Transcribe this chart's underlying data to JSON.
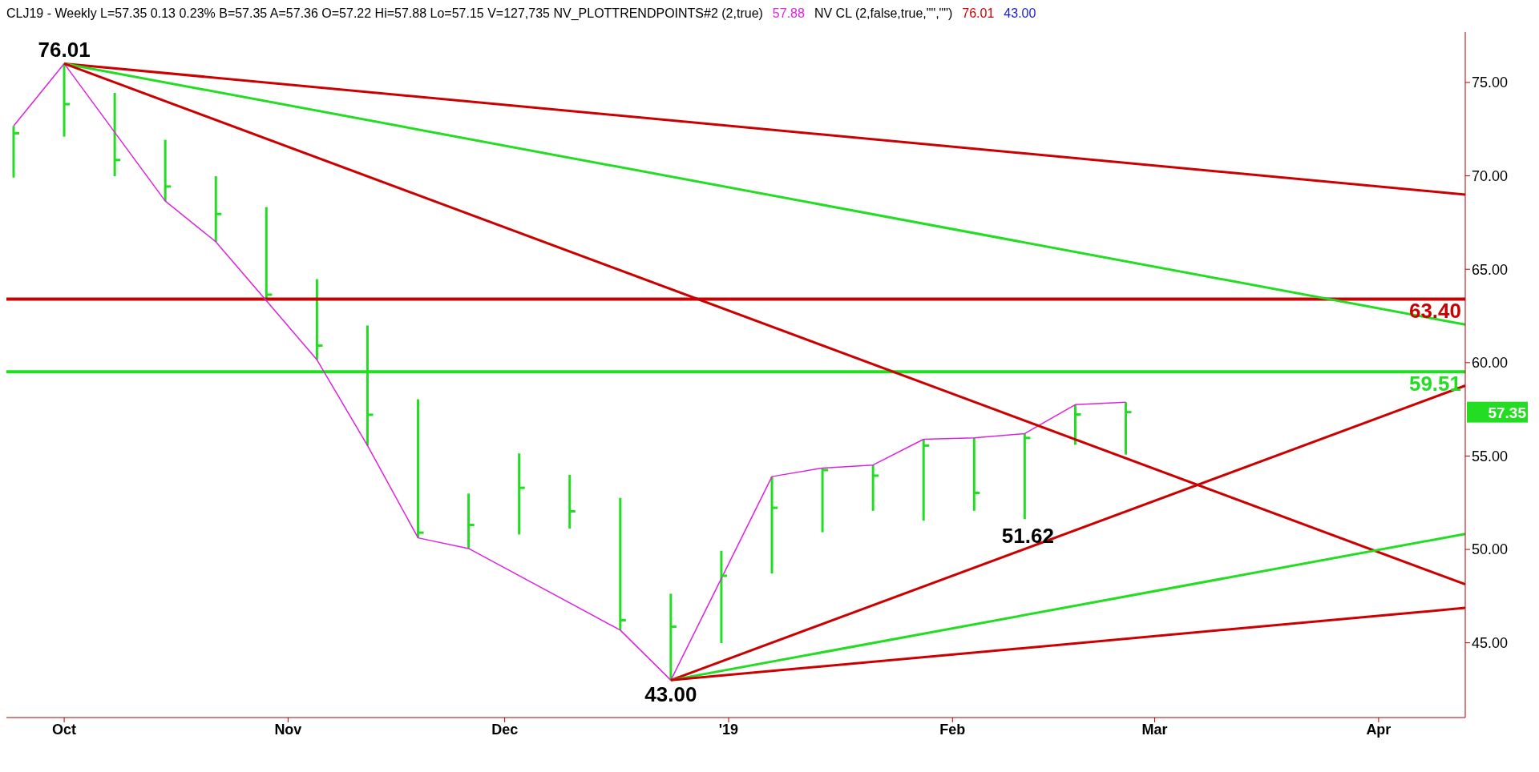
{
  "chart_data": {
    "type": "bar",
    "title": "CLJ19 - Weekly  L=57.35  0.13  0.23%  B=57.35  A=57.36  O=57.22  Hi=57.88  Lo=57.15  V=127,735  NV_PLOTTRENDPOINTS#2 (2,true)",
    "color": "#22dd22",
    "x": [
      "2018-09-24",
      "2018-10-01",
      "2018-10-08",
      "2018-10-15",
      "2018-10-22",
      "2018-10-29",
      "2018-11-05",
      "2018-11-12",
      "2018-11-19",
      "2018-11-26",
      "2018-12-03",
      "2018-12-10",
      "2018-12-17",
      "2018-12-24",
      "2018-12-31",
      "2019-01-07",
      "2019-01-14",
      "2019-01-21",
      "2019-01-28",
      "2019-02-04",
      "2019-02-11",
      "2019-02-18",
      "2019-02-25"
    ],
    "base": [
      69.91,
      72.1,
      69.98,
      68.65,
      66.47,
      63.32,
      60.15,
      55.56,
      50.62,
      50.05,
      50.8,
      51.12,
      45.68,
      43.0,
      44.99,
      48.71,
      50.92,
      52.07,
      51.54,
      52.07,
      51.62,
      55.6,
      55.08
    ],
    "values": [
      2.76,
      3.91,
      4.46,
      3.28,
      3.51,
      5.01,
      4.32,
      6.43,
      7.42,
      2.94,
      4.34,
      2.87,
      7.08,
      4.63,
      4.94,
      5.19,
      3.44,
      2.45,
      4.36,
      3.9,
      4.58,
      2.15,
      2.8
    ],
    "series": [
      {
        "type": "line",
        "color": "#dd22dd",
        "x": [
          "2018-09-24",
          "2018-10-01",
          "2018-10-15",
          "2018-10-22",
          "2018-10-29",
          "2018-11-05",
          "2018-11-12",
          "2018-11-19",
          "2018-11-26",
          "2018-12-17",
          "2018-12-24",
          "2019-01-07",
          "2019-01-14",
          "2019-01-21",
          "2019-01-28",
          "2019-02-04",
          "2019-02-11",
          "2019-02-18",
          "2019-02-25"
        ],
        "values": [
          72.67,
          76.01,
          68.65,
          66.47,
          63.32,
          60.15,
          55.56,
          50.62,
          50.05,
          45.68,
          43.0,
          53.9,
          54.36,
          54.52,
          55.9,
          55.97,
          56.2,
          57.75,
          57.88
        ]
      },
      {
        "type": "line",
        "color": "#cc0000",
        "x": [
          "2018-10-01",
          "2019-04-13"
        ],
        "values": [
          76.01,
          69.0
        ]
      },
      {
        "type": "line",
        "color": "#22dd22",
        "x": [
          "2018-10-01",
          "2019-04-13"
        ],
        "values": [
          76.01,
          62.04
        ]
      },
      {
        "type": "line",
        "color": "#cc0000",
        "x": [
          "2018-10-01",
          "2019-04-13"
        ],
        "values": [
          76.01,
          48.13
        ]
      },
      {
        "type": "line",
        "color": "#cc0000",
        "x": [
          "2018-12-24",
          "2019-04-13"
        ],
        "values": [
          43.0,
          58.77
        ]
      },
      {
        "type": "line",
        "color": "#22dd22",
        "x": [
          "2018-12-24",
          "2019-04-13"
        ],
        "values": [
          43.0,
          50.83
        ]
      },
      {
        "type": "line",
        "color": "#cc0000",
        "x": [
          "2018-12-24",
          "2019-04-13"
        ],
        "values": [
          43.0,
          46.87
        ]
      },
      {
        "type": "scatter",
        "color": "#22dd22",
        "x": [
          "2018-09-24",
          "2018-10-01",
          "2018-10-08",
          "2018-10-15",
          "2018-10-22",
          "2018-10-29",
          "2018-11-05",
          "2018-11-12",
          "2018-11-19",
          "2018-11-26",
          "2018-12-03",
          "2018-12-10",
          "2018-12-17",
          "2018-12-24",
          "2018-12-31",
          "2019-01-07",
          "2019-01-14",
          "2019-01-21",
          "2019-01-28",
          "2019-02-04",
          "2019-02-11",
          "2019-02-18",
          "2019-02-25"
        ],
        "values": [
          72.28,
          73.84,
          70.85,
          69.43,
          67.96,
          63.64,
          60.91,
          57.21,
          50.9,
          51.31,
          53.3,
          52.04,
          46.21,
          45.86,
          48.59,
          52.23,
          54.25,
          53.95,
          55.56,
          53.03,
          55.97,
          57.23,
          57.35
        ]
      }
    ],
    "ref_lines": [
      {
        "axis": "y",
        "value": 63.4,
        "label": "63.40",
        "color": "#cc0000"
      },
      {
        "axis": "y",
        "value": 59.51,
        "label": "59.51",
        "color": "#22dd22"
      }
    ],
    "annotations": [
      "57.88",
      "NV CL (2,false,true,\"\",\"\")",
      "76.01",
      "43.00",
      {
        "text": "76.01",
        "x": "2018-10-01",
        "y": 76.01
      },
      {
        "text": "43.00",
        "x": "2018-12-24",
        "y": 43.0
      },
      "51.62",
      "57.35"
    ],
    "xlim": [
      "2018-09-23",
      "2019-04-13"
    ],
    "xticks": [
      {
        "value": "2018-10-01",
        "label": "Oct"
      },
      {
        "value": "2018-11-01",
        "label": "Nov"
      },
      {
        "value": "2018-12-01",
        "label": "Dec"
      },
      {
        "value": "2019-01-01",
        "label": "'19"
      },
      {
        "value": "2019-02-01",
        "label": "Feb"
      },
      {
        "value": "2019-03-01",
        "label": "Mar"
      },
      {
        "value": "2019-04-01",
        "label": "Apr"
      }
    ],
    "ylim": [
      41,
      77.7
    ],
    "yticks": [
      {
        "value": 45,
        "label": "45.00"
      },
      {
        "value": 50,
        "label": "50.00"
      },
      {
        "value": 55,
        "label": "55.00"
      },
      {
        "value": 60,
        "label": "60.00"
      },
      {
        "value": 65,
        "label": "65.00"
      },
      {
        "value": 70,
        "label": "70.00"
      },
      {
        "value": 75,
        "label": "75.00"
      }
    ]
  }
}
